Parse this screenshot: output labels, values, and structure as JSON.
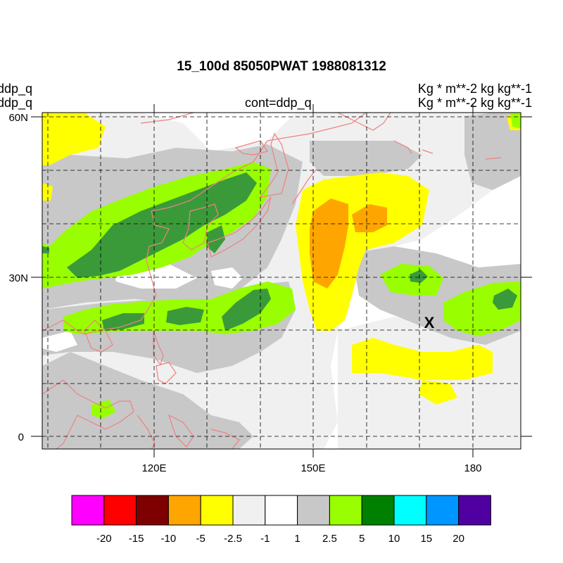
{
  "title": "15_100d 85050PWAT  1988081312",
  "left_labels": [
    "ddp_q",
    "ddp_q"
  ],
  "right_labels": [
    "Kg  * m**-2 kg kg**-1",
    "Kg  * m**-2 kg kg**-1"
  ],
  "center_label": "cont=ddp_q",
  "axes": {
    "lat_ticks": [
      "60N",
      "30N",
      "0"
    ],
    "lon_ticks": [
      "120E",
      "150E",
      "180"
    ],
    "lon_range": [
      100,
      190
    ],
    "lat_range": [
      -2,
      61
    ],
    "grid": "dashed every 10 degrees"
  },
  "marker": {
    "label": "X",
    "lon": 172,
    "lat": 21
  },
  "colorbar": {
    "labels": [
      "-20",
      "-15",
      "-10",
      "-5",
      "-2.5",
      "-1",
      "1",
      "2.5",
      "5",
      "10",
      "15",
      "20"
    ],
    "colors": [
      "#ff00ff",
      "#ff0000",
      "#7f0000",
      "#ffa500",
      "#ffff00",
      "#f0f0f0",
      "#ffffff",
      "#c8c8c8",
      "#99ff00",
      "#008000",
      "#00ffff",
      "#0096ff",
      "#5000a0"
    ]
  },
  "colors": {
    "coastline": "#f08080",
    "neg_2_5_to_5": "#ffff00",
    "neg_5_to_10": "#ffa500",
    "neutral_light": "#f0f0f0",
    "pos_1_to_2_5": "#c8c8c8",
    "pos_2_5_to_5": "#99ff00",
    "pos_5_to_10": "#3a9a3a"
  }
}
